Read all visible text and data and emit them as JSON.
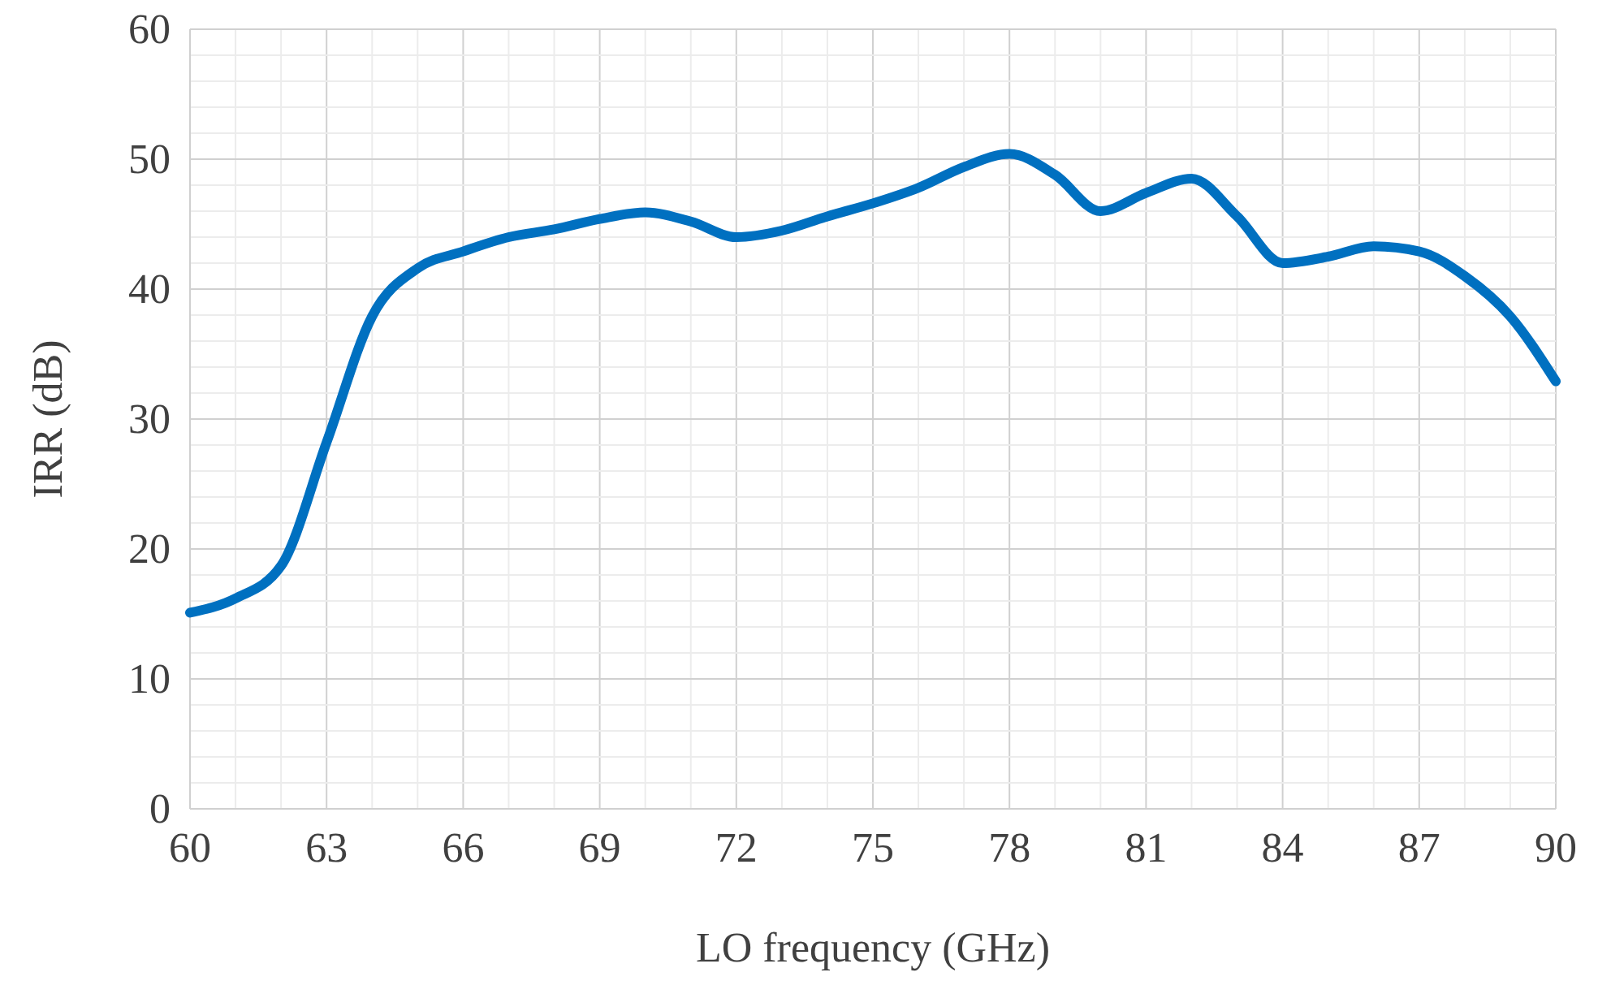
{
  "chart_data": {
    "type": "line",
    "xlabel": "LO frequency (GHz)",
    "ylabel": "IRR (dB)",
    "x": [
      60,
      61,
      62,
      63,
      64,
      65,
      66,
      67,
      68,
      69,
      70,
      71,
      72,
      73,
      74,
      75,
      76,
      77,
      78,
      79,
      80,
      81,
      82,
      83,
      84,
      85,
      86,
      87,
      88,
      89,
      90
    ],
    "series": [
      {
        "color": "#0070c0",
        "values": [
          15.1,
          16.2,
          18.7,
          28.2,
          37.9,
          41.6,
          42.9,
          44,
          44.6,
          45.4,
          45.9,
          45.2,
          44,
          44.5,
          45.6,
          46.6,
          47.8,
          49.4,
          50.4,
          48.8,
          46,
          47.4,
          48.5,
          45.6,
          42,
          42.5,
          43.3,
          42.9,
          41,
          37.9,
          32.9
        ]
      }
    ],
    "xlim": [
      60,
      90
    ],
    "xticks": [
      60,
      63,
      66,
      69,
      72,
      75,
      78,
      81,
      84,
      87,
      90
    ],
    "ylim": [
      0,
      60
    ],
    "yticks": [
      0,
      10,
      20,
      30,
      40,
      50,
      60
    ],
    "grid": true,
    "marker": "none",
    "line_style": "solid"
  }
}
